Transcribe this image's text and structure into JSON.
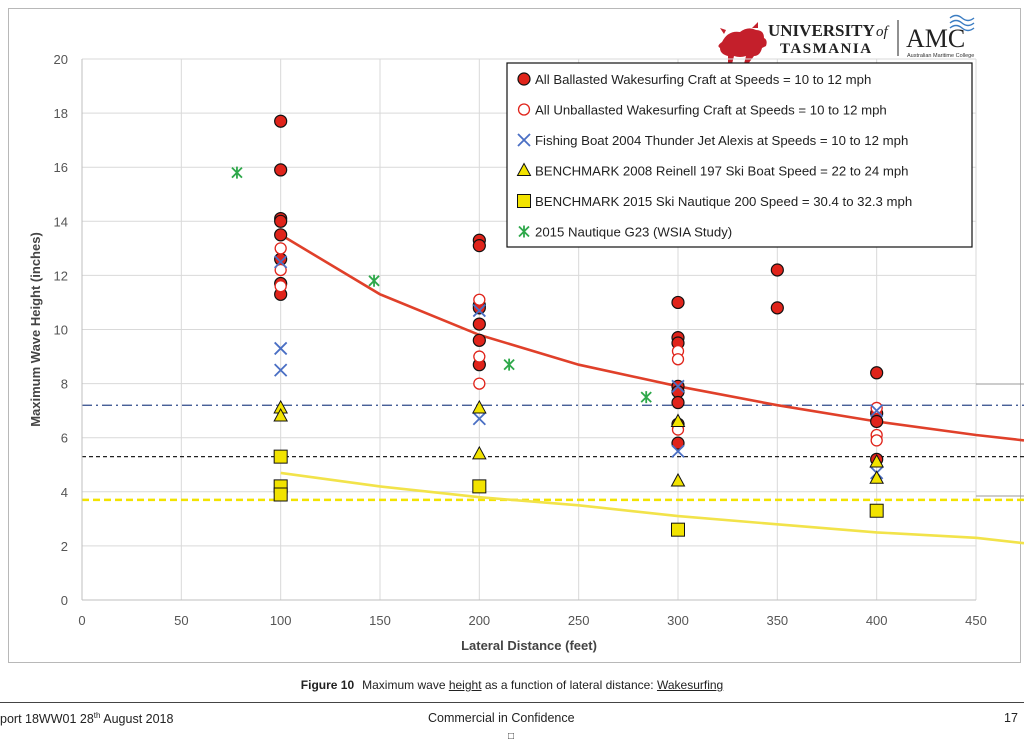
{
  "logo": {
    "university_line1": "UNIVERSITY",
    "university_of": "of",
    "university_line2": "TASMANIA",
    "amc": "AMC",
    "amc_subtitle": "Australian Maritime College"
  },
  "caption": {
    "label": "Figure 10",
    "text_before": "Maximum wave ",
    "text_underlined": "height",
    "text_middle": " as a function of lateral distance: ",
    "text_underlined2": "Wakesurfing"
  },
  "footer": {
    "left": "port 18WW01   28",
    "left_sup": "th",
    "left_after": " August 2018",
    "center": "Commercial in Confidence",
    "right": "17",
    "box": "□"
  },
  "chart_data": {
    "type": "scatter",
    "xlabel": "Lateral Distance   (feet)",
    "ylabel": "Maximum Wave Height   (inches)",
    "xlim": [
      0,
      450
    ],
    "ylim": [
      0,
      20
    ],
    "xticks": [
      0,
      50,
      100,
      150,
      200,
      250,
      300,
      350,
      400,
      450
    ],
    "yticks": [
      0,
      2,
      4,
      6,
      8,
      10,
      12,
      14,
      16,
      18,
      20
    ],
    "grid": true,
    "legend_position": "top-right",
    "series": [
      {
        "name": "All Ballasted Wakesurfing Craft at Speeds = 10 to 12 mph",
        "marker": "filled-circle",
        "color": "#e0241b",
        "points": [
          [
            100,
            17.7
          ],
          [
            100,
            15.9
          ],
          [
            100,
            14.1
          ],
          [
            100,
            14.0
          ],
          [
            100,
            13.5
          ],
          [
            100,
            12.6
          ],
          [
            100,
            11.7
          ],
          [
            100,
            11.3
          ],
          [
            200,
            13.3
          ],
          [
            200,
            13.1
          ],
          [
            200,
            10.9
          ],
          [
            200,
            10.8
          ],
          [
            200,
            10.2
          ],
          [
            200,
            9.6
          ],
          [
            200,
            8.7
          ],
          [
            300,
            11.0
          ],
          [
            300,
            9.7
          ],
          [
            300,
            9.5
          ],
          [
            300,
            7.9
          ],
          [
            300,
            7.7
          ],
          [
            300,
            7.3
          ],
          [
            300,
            6.5
          ],
          [
            300,
            5.8
          ],
          [
            350,
            12.2
          ],
          [
            350,
            10.8
          ],
          [
            400,
            8.4
          ],
          [
            400,
            6.9
          ],
          [
            400,
            6.6
          ],
          [
            400,
            5.2
          ]
        ]
      },
      {
        "name": "All Unballasted Wakesurfing Craft at Speeds = 10 to 12 mph",
        "marker": "open-circle",
        "color": "#e0241b",
        "points": [
          [
            100,
            13.0
          ],
          [
            100,
            12.2
          ],
          [
            100,
            11.6
          ],
          [
            200,
            11.1
          ],
          [
            200,
            9.0
          ],
          [
            200,
            8.0
          ],
          [
            300,
            9.2
          ],
          [
            300,
            8.9
          ],
          [
            300,
            6.3
          ],
          [
            400,
            7.1
          ],
          [
            400,
            6.1
          ],
          [
            400,
            5.9
          ]
        ]
      },
      {
        "name": "Fishing Boat 2004 Thunder Jet Alexis at Speeds = 10 to 12 mph",
        "marker": "x",
        "color": "#4a6fc4",
        "points": [
          [
            100,
            12.5
          ],
          [
            100,
            9.3
          ],
          [
            100,
            8.5
          ],
          [
            200,
            10.7
          ],
          [
            200,
            6.7
          ],
          [
            300,
            7.9
          ],
          [
            300,
            5.5
          ],
          [
            400,
            7.0
          ],
          [
            400,
            4.7
          ]
        ]
      },
      {
        "name": "BENCHMARK  2008 Reinell 197 Ski Boat  Speed = 22 to 24 mph",
        "marker": "triangle",
        "color": "#f2e300",
        "points": [
          [
            100,
            7.1
          ],
          [
            100,
            6.8
          ],
          [
            200,
            7.1
          ],
          [
            200,
            5.4
          ],
          [
            300,
            6.6
          ],
          [
            300,
            4.4
          ],
          [
            400,
            5.1
          ],
          [
            400,
            4.5
          ]
        ]
      },
      {
        "name": "BENCHMARK  2015 Ski Nautique 200  Speed = 30.4 to 32.3 mph",
        "marker": "square",
        "color": "#f2e300",
        "points": [
          [
            100,
            5.3
          ],
          [
            100,
            4.2
          ],
          [
            100,
            3.9
          ],
          [
            200,
            4.2
          ],
          [
            300,
            2.6
          ],
          [
            400,
            3.3
          ]
        ]
      },
      {
        "name": "2015 Nautique G23 (WSIA Study)",
        "marker": "asterisk",
        "color": "#2ea84a",
        "points": [
          [
            78,
            15.8
          ],
          [
            147,
            11.8
          ],
          [
            215,
            8.7
          ],
          [
            284,
            7.5
          ]
        ]
      }
    ],
    "trendlines": [
      {
        "color": "#e0402a",
        "x": [
          100,
          150,
          200,
          250,
          300,
          350,
          400,
          450,
          475
        ],
        "y": [
          13.5,
          11.3,
          9.8,
          8.7,
          7.9,
          7.2,
          6.6,
          6.1,
          5.9
        ]
      },
      {
        "color": "#f2e34a",
        "x": [
          100,
          150,
          200,
          250,
          300,
          350,
          400,
          450,
          475
        ],
        "y": [
          4.7,
          4.2,
          3.8,
          3.5,
          3.1,
          2.8,
          2.5,
          2.3,
          2.1
        ]
      }
    ],
    "reference_lines": [
      {
        "y": 7.2,
        "style": "dash-dot",
        "color": "#2f4a8a"
      },
      {
        "y": 5.3,
        "style": "dashed",
        "color": "#222222"
      },
      {
        "y": 3.7,
        "style": "dashed",
        "color": "#f2e300"
      }
    ]
  }
}
